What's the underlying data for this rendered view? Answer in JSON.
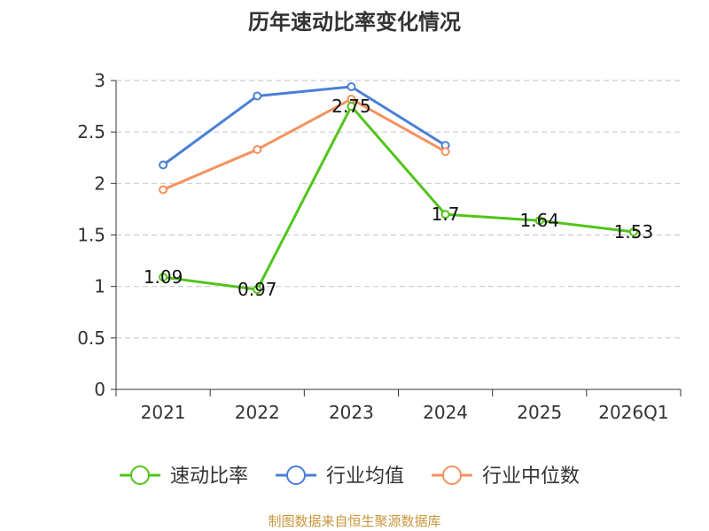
{
  "chart_data": {
    "type": "line",
    "title": "历年速动比率变化情况",
    "categories": [
      "2021",
      "2022",
      "2023",
      "2024",
      "2025",
      "2026Q1"
    ],
    "ylim": [
      0,
      3
    ],
    "yticks": [
      "0",
      "0.5",
      "1",
      "1.5",
      "2",
      "2.5",
      "3"
    ],
    "ytick_values": [
      0,
      0.5,
      1,
      1.5,
      2,
      2.5,
      3
    ],
    "grid": true,
    "legend_position": "bottom",
    "series": [
      {
        "name": "速动比率",
        "color": "#52c41a",
        "values": [
          1.09,
          0.97,
          2.75,
          1.7,
          1.64,
          1.53
        ],
        "labels": [
          "1.09",
          "0.97",
          "2.75",
          "1.7",
          "1.64",
          "1.53"
        ]
      },
      {
        "name": "行业均值",
        "color": "#4a7fd6",
        "values": [
          2.18,
          2.85,
          2.94,
          2.37,
          null,
          null
        ]
      },
      {
        "name": "行业中位数",
        "color": "#f4925f",
        "values": [
          1.94,
          2.33,
          2.82,
          2.31,
          null,
          null
        ]
      }
    ],
    "source": "制图数据来自恒生聚源数据库",
    "source_color": "#c8963c"
  }
}
